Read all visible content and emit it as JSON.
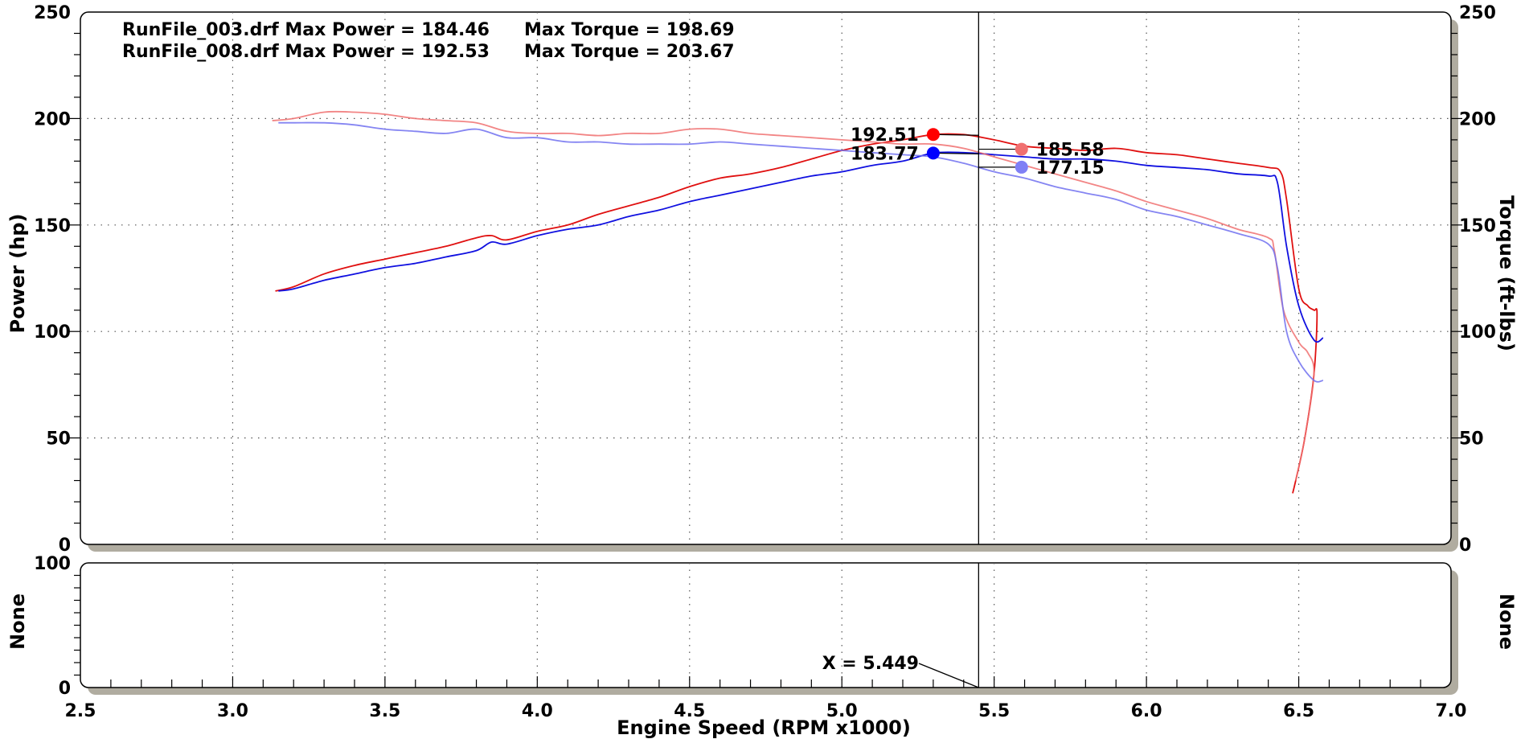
{
  "chart_data": [
    {
      "type": "line",
      "panel": "main",
      "header_lines": [
        {
          "file": "RunFile_003.drf Max Power = 184.46",
          "torque": "Max Torque = 198.69"
        },
        {
          "file": "RunFile_008.drf Max Power = 192.53",
          "torque": "Max Torque = 203.67"
        }
      ],
      "xlabel": "Engine Speed (RPM x1000)",
      "ylabel_left": "Power (hp)",
      "ylabel_right": "Torque (ft-lbs)",
      "xlim": [
        2.5,
        7.0
      ],
      "ylim": [
        0,
        250
      ],
      "x_ticks": [
        "2.5",
        "3.0",
        "3.5",
        "4.0",
        "4.5",
        "5.0",
        "5.5",
        "6.0",
        "6.5",
        "7.0"
      ],
      "y_ticks_left": [
        "0",
        "50",
        "100",
        "150",
        "200",
        "250"
      ],
      "y_ticks_right": [
        "0",
        "50",
        "100",
        "150",
        "200",
        "250"
      ],
      "grid": true,
      "cursor_x": 5.449,
      "series": [
        {
          "color": "#e01010",
          "opacity": 1,
          "x": [
            3.14,
            3.2,
            3.3,
            3.4,
            3.5,
            3.6,
            3.7,
            3.8,
            3.85,
            3.9,
            4.0,
            4.1,
            4.2,
            4.3,
            4.4,
            4.5,
            4.6,
            4.7,
            4.8,
            4.9,
            5.0,
            5.1,
            5.2,
            5.3,
            5.4,
            5.5,
            5.6,
            5.7,
            5.8,
            5.9,
            6.0,
            6.1,
            6.2,
            6.3,
            6.4,
            6.44,
            6.46,
            6.5,
            6.53,
            6.55,
            6.56,
            6.55,
            6.52,
            6.49,
            6.48
          ],
          "y": [
            119,
            121,
            127,
            131,
            134,
            137,
            140,
            144,
            145,
            143,
            147,
            150,
            155,
            159,
            163,
            168,
            172,
            174,
            177,
            181,
            185,
            188,
            190,
            192.5,
            192.5,
            190,
            187,
            186,
            185,
            186,
            184,
            183,
            181,
            179,
            177,
            175,
            162,
            120,
            112,
            110,
            108,
            80,
            50,
            30,
            24
          ]
        },
        {
          "color": "#1010e0",
          "opacity": 1,
          "x": [
            3.15,
            3.2,
            3.3,
            3.4,
            3.5,
            3.6,
            3.7,
            3.8,
            3.85,
            3.9,
            4.0,
            4.1,
            4.2,
            4.3,
            4.4,
            4.5,
            4.6,
            4.7,
            4.8,
            4.9,
            5.0,
            5.1,
            5.2,
            5.3,
            5.4,
            5.5,
            5.6,
            5.7,
            5.8,
            5.9,
            6.0,
            6.1,
            6.2,
            6.3,
            6.4,
            6.43,
            6.46,
            6.5,
            6.55,
            6.58
          ],
          "y": [
            119,
            120,
            124,
            127,
            130,
            132,
            135,
            138,
            142,
            141,
            145,
            148,
            150,
            154,
            157,
            161,
            164,
            167,
            170,
            173,
            175,
            178,
            180,
            183.8,
            184,
            183,
            182,
            181,
            181,
            180,
            178,
            177,
            176,
            174,
            173,
            170,
            140,
            112,
            96,
            97
          ]
        },
        {
          "color": "#f07070",
          "opacity": 0.85,
          "x": [
            3.13,
            3.2,
            3.3,
            3.4,
            3.5,
            3.6,
            3.7,
            3.8,
            3.9,
            4.0,
            4.1,
            4.2,
            4.3,
            4.4,
            4.5,
            4.6,
            4.7,
            4.8,
            4.9,
            5.0,
            5.1,
            5.2,
            5.3,
            5.4,
            5.5,
            5.6,
            5.7,
            5.8,
            5.9,
            6.0,
            6.1,
            6.2,
            6.3,
            6.4,
            6.42,
            6.45,
            6.5,
            6.53,
            6.55,
            6.52,
            6.49
          ],
          "y": [
            199,
            200,
            203,
            203,
            202,
            200,
            199,
            198,
            194,
            193,
            193,
            192,
            193,
            193,
            195,
            195,
            193,
            192,
            191,
            190,
            189,
            188,
            188,
            186,
            182,
            178,
            174,
            170,
            166,
            161,
            157,
            153,
            148,
            144,
            138,
            110,
            95,
            90,
            80,
            50,
            30
          ]
        },
        {
          "color": "#7070f0",
          "opacity": 0.85,
          "x": [
            3.15,
            3.2,
            3.3,
            3.4,
            3.5,
            3.6,
            3.7,
            3.8,
            3.9,
            4.0,
            4.1,
            4.2,
            4.3,
            4.4,
            4.5,
            4.6,
            4.7,
            4.8,
            4.9,
            5.0,
            5.1,
            5.2,
            5.3,
            5.4,
            5.5,
            5.6,
            5.7,
            5.8,
            5.9,
            6.0,
            6.1,
            6.2,
            6.3,
            6.4,
            6.43,
            6.46,
            6.5,
            6.55,
            6.58
          ],
          "y": [
            198,
            198,
            198,
            197,
            195,
            194,
            193,
            195,
            191,
            191,
            189,
            189,
            188,
            188,
            188,
            189,
            188,
            187,
            186,
            185,
            184,
            183,
            182,
            179,
            175,
            172,
            168,
            165,
            162,
            157,
            154,
            150,
            146,
            141,
            130,
            100,
            86,
            77,
            77
          ]
        }
      ],
      "markers": [
        {
          "x": 5.3,
          "y": 192.51,
          "color": "#ff0000",
          "label": "192.51",
          "label_side": "left"
        },
        {
          "x": 5.3,
          "y": 183.77,
          "color": "#0000ff",
          "label": "183.77",
          "label_side": "left"
        },
        {
          "x": 5.59,
          "y": 185.58,
          "color": "#f07070",
          "label": "185.58",
          "label_side": "right"
        },
        {
          "x": 5.59,
          "y": 177.15,
          "color": "#7f7ff5",
          "label": "177.15",
          "label_side": "right"
        }
      ]
    },
    {
      "type": "line",
      "panel": "secondary",
      "ylabel_left": "None",
      "ylabel_right": "None",
      "ylim": [
        0,
        100
      ],
      "y_ticks_left": [
        "0",
        "100"
      ],
      "cursor_label": "X = 5.449",
      "series": []
    }
  ]
}
